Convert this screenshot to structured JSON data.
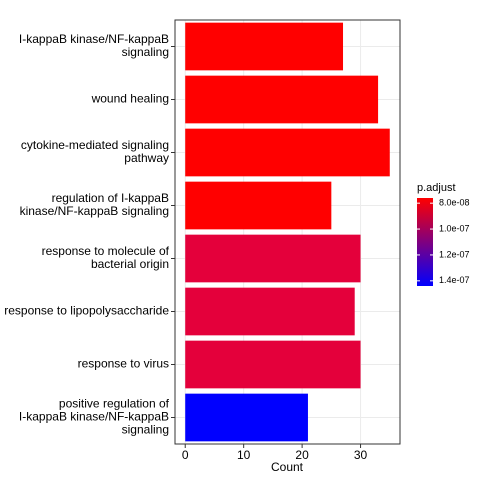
{
  "chart_data": {
    "type": "bar",
    "orientation": "horizontal",
    "categories": [
      "I-kappaB kinase/NF-kappaB\nsignaling",
      "wound healing",
      "cytokine-mediated signaling\npathway",
      "regulation of I-kappaB\nkinase/NF-kappaB signaling",
      "response to molecule of\nbacterial origin",
      "response to lipopolysaccharide",
      "response to virus",
      "positive regulation of\nI-kappaB kinase/NF-kappaB\nsignaling"
    ],
    "values": [
      27,
      33,
      35,
      25,
      30,
      29,
      30,
      21
    ],
    "colors": [
      "#ff0000",
      "#ff0000",
      "#ff0000",
      "#ff0000",
      "#e4003b",
      "#e4003b",
      "#e4003b",
      "#0000ff"
    ],
    "xlabel": "Count",
    "xlim": [
      -1.75,
      36.75
    ],
    "xticks": [
      0,
      10,
      20,
      30
    ],
    "grid": true,
    "legend": {
      "title": "p.adjust",
      "position": "right",
      "colors": [
        "#ff0000",
        "#0000ff"
      ],
      "lim": [
        7.6e-08,
        1.44e-07
      ],
      "ticks": [
        {
          "value": 8e-08,
          "label": "8.0e-08"
        },
        {
          "value": 1e-07,
          "label": "1.0e-07"
        },
        {
          "value": 1.2e-07,
          "label": "1.2e-07"
        },
        {
          "value": 1.4e-07,
          "label": "1.4e-07"
        }
      ]
    }
  }
}
